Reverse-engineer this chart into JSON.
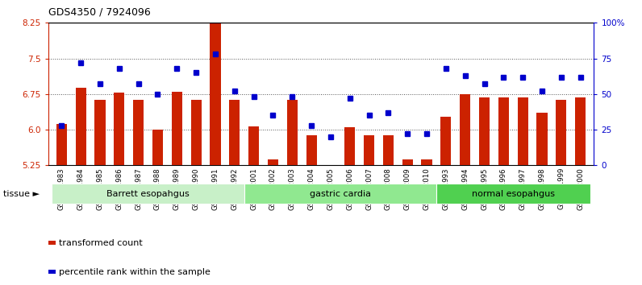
{
  "title": "GDS4350 / 7924096",
  "samples": [
    "GSM851983",
    "GSM851984",
    "GSM851985",
    "GSM851986",
    "GSM851987",
    "GSM851988",
    "GSM851989",
    "GSM851990",
    "GSM851991",
    "GSM851992",
    "GSM852001",
    "GSM852002",
    "GSM852003",
    "GSM852004",
    "GSM852005",
    "GSM852006",
    "GSM852007",
    "GSM852008",
    "GSM852009",
    "GSM852010",
    "GSM851993",
    "GSM851994",
    "GSM851995",
    "GSM851996",
    "GSM851997",
    "GSM851998",
    "GSM851999",
    "GSM852000"
  ],
  "bar_values": [
    6.12,
    6.88,
    6.62,
    6.78,
    6.62,
    6.0,
    6.8,
    6.62,
    8.35,
    6.62,
    6.07,
    5.38,
    6.62,
    5.88,
    5.25,
    6.05,
    5.88,
    5.88,
    5.38,
    5.38,
    6.28,
    6.75,
    6.68,
    6.68,
    6.68,
    6.35,
    6.62,
    6.68
  ],
  "dot_values": [
    28,
    72,
    57,
    68,
    57,
    50,
    68,
    65,
    78,
    52,
    48,
    35,
    48,
    28,
    20,
    47,
    35,
    37,
    22,
    22,
    68,
    63,
    57,
    62,
    62,
    52,
    62,
    62
  ],
  "groups": [
    {
      "label": "Barrett esopahgus",
      "start": 0,
      "end": 9,
      "color": "#c8f0c8"
    },
    {
      "label": "gastric cardia",
      "start": 10,
      "end": 19,
      "color": "#90e890"
    },
    {
      "label": "normal esopahgus",
      "start": 20,
      "end": 27,
      "color": "#50d050"
    }
  ],
  "ylim_left": [
    5.25,
    8.25
  ],
  "ylim_right": [
    0,
    100
  ],
  "yticks_left": [
    5.25,
    6.0,
    6.75,
    7.5,
    8.25
  ],
  "yticks_right": [
    0,
    25,
    50,
    75,
    100
  ],
  "ytick_labels_right": [
    "0",
    "25",
    "50",
    "75",
    "100%"
  ],
  "bar_color": "#cc2200",
  "dot_color": "#0000cc",
  "grid_color": "#555555",
  "tissue_label": "tissue",
  "legend_bar": "transformed count",
  "legend_dot": "percentile rank within the sample"
}
